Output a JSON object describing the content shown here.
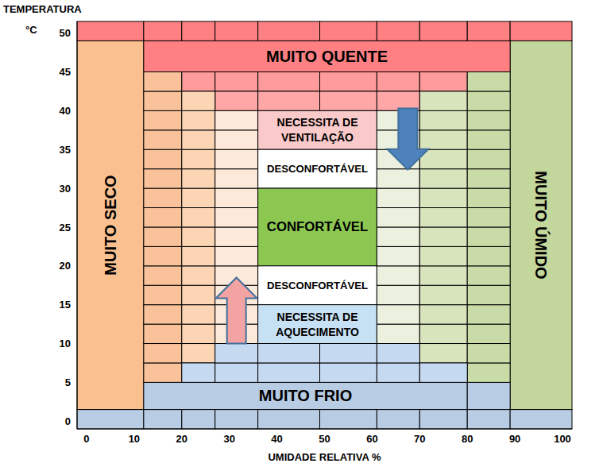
{
  "chart_data": {
    "type": "zones",
    "x_label": "UMIDADE RELATIVA %",
    "y_label": [
      "TEMPERATURA",
      "°C"
    ],
    "xlim": [
      -2,
      102
    ],
    "xticks": [
      0,
      10,
      20,
      30,
      40,
      50,
      60,
      70,
      80,
      90,
      100
    ],
    "ylim": [
      -1,
      51.5
    ],
    "yticks": [
      0,
      5,
      10,
      15,
      20,
      25,
      30,
      35,
      40,
      45,
      50
    ],
    "regions": [
      {
        "x": [
          -2,
          12,
          20,
          27,
          36,
          49,
          61,
          70,
          80,
          89,
          102
        ],
        "y": [
          49,
          51.5
        ],
        "color": "#FF8082"
      },
      {
        "x": [
          -2,
          12,
          20,
          27,
          36,
          49,
          61,
          70,
          80,
          89,
          102
        ],
        "y": [
          -1,
          1.5
        ],
        "color": "#B8CCE4"
      },
      {
        "x": [
          -2,
          12
        ],
        "y": [
          1.5,
          49
        ],
        "color": "#FAC090",
        "label": [
          "MUITO SECO"
        ]
      },
      {
        "x": [
          89,
          102
        ],
        "y": [
          1.5,
          49
        ],
        "color": "#C3D69B",
        "label": [
          "MUITO ÚMIDO"
        ]
      },
      {
        "x": [
          12,
          89
        ],
        "y": [
          45,
          49
        ],
        "color": "#FF8082",
        "label": [
          "MUITO QUENTE"
        ]
      },
      {
        "x": [
          12,
          80
        ],
        "y": [
          1.5,
          5
        ],
        "color": "#B8CCE4",
        "label": [
          "MUITO FRIO"
        ]
      },
      {
        "x": [
          80,
          89
        ],
        "y": [
          1.5,
          5
        ],
        "color": "#B8CCE4"
      },
      {
        "x": [
          12,
          20
        ],
        "y": [
          5,
          7.5,
          10,
          12.5,
          15,
          17.5,
          20,
          22.5,
          25,
          27.5,
          30,
          32.5,
          35,
          37.5,
          40,
          42.5,
          45
        ],
        "color": "#F9C29A"
      },
      {
        "x": [
          20,
          27,
          36,
          49,
          61,
          70,
          80
        ],
        "y": [
          42.5,
          45
        ],
        "color": "#FF9B9B"
      },
      {
        "x": [
          27,
          36,
          49,
          61,
          70
        ],
        "y": [
          40,
          42.5
        ],
        "color": "#FFA7A7"
      },
      {
        "x": [
          20,
          27
        ],
        "y": [
          7.5,
          10,
          12.5,
          15,
          17.5,
          20,
          22.5,
          25,
          27.5,
          30,
          32.5,
          35,
          37.5,
          40,
          42.5
        ],
        "color": "#FCD5B4"
      },
      {
        "x": [
          27,
          36
        ],
        "y": [
          10,
          12.5,
          15,
          17.5,
          20,
          22.5,
          25,
          27.5,
          30,
          32.5,
          35,
          37.5,
          40
        ],
        "color": "#FDE9D9"
      },
      {
        "x": [
          36,
          61
        ],
        "y": [
          35,
          40
        ],
        "color": "#FACACA",
        "label": [
          "NECESSITA DE",
          "VENTILAÇÃO"
        ]
      },
      {
        "x": [
          36,
          61
        ],
        "y": [
          30,
          35
        ],
        "color": "#FFFFFF",
        "label": [
          "DESCONFORTÁVEL"
        ]
      },
      {
        "x": [
          36,
          61
        ],
        "y": [
          20,
          30
        ],
        "color": "#8CC751",
        "label": [
          "CONFORTÁVEL"
        ]
      },
      {
        "x": [
          36,
          61
        ],
        "y": [
          15,
          20
        ],
        "color": "#FFFFFF",
        "label": [
          "DESCONFORTÁVEL"
        ]
      },
      {
        "x": [
          36,
          61
        ],
        "y": [
          10,
          15
        ],
        "color": "#C6E0F4",
        "label": [
          "NECESSITA DE",
          "AQUECIMENTO"
        ]
      },
      {
        "x": [
          61,
          70
        ],
        "y": [
          10,
          12.5,
          15,
          17.5,
          20,
          22.5,
          25,
          27.5,
          30,
          32.5,
          35,
          37.5,
          40
        ],
        "color": "#EBF1DE"
      },
      {
        "x": [
          70,
          80
        ],
        "y": [
          7.5,
          10,
          12.5,
          15,
          17.5,
          20,
          22.5,
          25,
          27.5,
          30,
          32.5,
          35,
          37.5,
          40,
          42.5
        ],
        "color": "#D8E4BC"
      },
      {
        "x": [
          80,
          89
        ],
        "y": [
          5,
          7.5,
          10,
          12.5,
          15,
          17.5,
          20,
          22.5,
          25,
          27.5,
          30,
          32.5,
          35,
          37.5,
          40,
          42.5,
          45
        ],
        "color": "#C9DBA6"
      },
      {
        "x": [
          20,
          27,
          36,
          49,
          61,
          70,
          80
        ],
        "y": [
          5,
          7.5
        ],
        "color": "#C5D9F1"
      },
      {
        "x": [
          27,
          36,
          49,
          61,
          70
        ],
        "y": [
          7.5,
          10
        ],
        "color": "#C5D9F1"
      }
    ],
    "arrows": [
      {
        "x": 31.5,
        "y": [
          10,
          18.5
        ],
        "color": "#F4A3A3"
      },
      {
        "x": 67.5,
        "y": [
          40.3,
          32.4
        ],
        "color": "#4F81BD"
      }
    ]
  }
}
